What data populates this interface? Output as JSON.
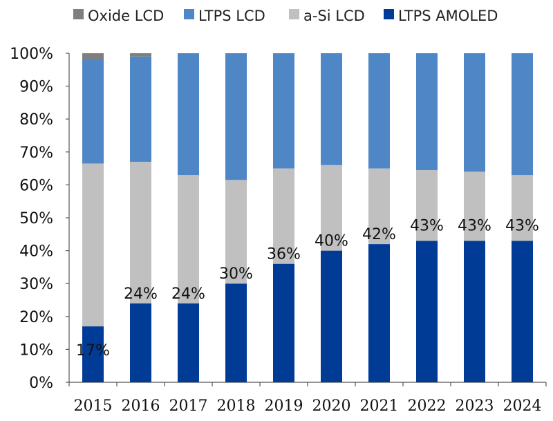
{
  "chart_data": {
    "type": "bar",
    "stacked": true,
    "categories": [
      "2015",
      "2016",
      "2017",
      "2018",
      "2019",
      "2020",
      "2021",
      "2022",
      "2023",
      "2024"
    ],
    "series": [
      {
        "name": "LTPS AMOLED",
        "color": "#003c96",
        "values": [
          17,
          24,
          24,
          30,
          36,
          40,
          42,
          43,
          43,
          43
        ]
      },
      {
        "name": "a-Si LCD",
        "color": "#c0c0c0",
        "values": [
          49.5,
          43,
          39,
          31.5,
          29,
          26,
          23,
          21.5,
          21,
          20
        ]
      },
      {
        "name": "LTPS LCD",
        "color": "#4f86c6",
        "values": [
          31.5,
          32,
          37,
          38.5,
          35,
          34,
          35,
          35.5,
          36,
          37
        ]
      },
      {
        "name": "Oxide LCD",
        "color": "#7f7f7f",
        "values": [
          2,
          1,
          0,
          0,
          0,
          0,
          0,
          0,
          0,
          0
        ]
      }
    ],
    "legend": {
      "placement": "top",
      "items": [
        {
          "name": "Oxide LCD",
          "color": "#7f7f7f"
        },
        {
          "name": "LTPS LCD",
          "color": "#4f86c6"
        },
        {
          "name": "a-Si LCD",
          "color": "#c0c0c0"
        },
        {
          "name": "LTPS AMOLED",
          "color": "#003c96"
        }
      ]
    },
    "data_labels": [
      "17%",
      "24%",
      "24%",
      "30%",
      "36%",
      "40%",
      "42%",
      "43%",
      "43%",
      "43%"
    ],
    "yticks": [
      "0%",
      "10%",
      "20%",
      "30%",
      "40%",
      "50%",
      "60%",
      "70%",
      "80%",
      "90%",
      "100%"
    ],
    "ylim": [
      0,
      100
    ],
    "grid": false,
    "title": "",
    "xlabel": "",
    "ylabel": ""
  }
}
